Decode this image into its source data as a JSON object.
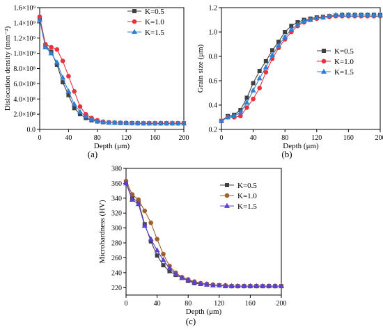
{
  "colors": {
    "k05": "#404040",
    "k10": "#e8323e",
    "k15": "#2f7fd4",
    "k10_c": "#a0602c",
    "k15_c": "#5b3fd6"
  },
  "chart_data": [
    {
      "id": "a",
      "type": "line",
      "panel_label": "(a)",
      "xlabel": "Depth (μm)",
      "ylabel": "Dislocation density (mm⁻²)",
      "xlim": [
        0,
        200
      ],
      "ylim": [
        0,
        1600000000.0
      ],
      "xticks": [
        0,
        40,
        80,
        120,
        160,
        200
      ],
      "xtick_labels": [
        "0",
        "40",
        "80",
        "120",
        "160",
        "200"
      ],
      "yticks": [
        0,
        200000000.0,
        400000000.0,
        600000000.0,
        800000000.0,
        1000000000.0,
        1200000000.0,
        1400000000.0,
        1600000000.0
      ],
      "ytick_labels": [
        "0.0",
        "2.0×10⁸",
        "4.0×10⁸",
        "6.0×10⁸",
        "8.0×10⁸",
        "1.0×10⁹",
        "1.2×10⁹",
        "1.4×10⁹",
        "1.6×10⁹"
      ],
      "legend": "top-right",
      "x": [
        0,
        8,
        16,
        24,
        32,
        40,
        48,
        56,
        64,
        72,
        80,
        88,
        96,
        104,
        112,
        120,
        128,
        136,
        144,
        152,
        160,
        168,
        176,
        184,
        192,
        200
      ],
      "series": [
        {
          "name": "K=0.5",
          "marker": "square",
          "values": [
            1450000000.0,
            1100000000.0,
            1020000000.0,
            850000000.0,
            620000000.0,
            450000000.0,
            280000000.0,
            200000000.0,
            150000000.0,
            120000000.0,
            105000000.0,
            95000000.0,
            90000000.0,
            87000000.0,
            85000000.0,
            83000000.0,
            82000000.0,
            81000000.0,
            80000000.0,
            80000000.0,
            80000000.0,
            80000000.0,
            80000000.0,
            80000000.0,
            80000000.0,
            80000000.0
          ]
        },
        {
          "name": "K=1.0",
          "marker": "circle",
          "values": [
            1480000000.0,
            1120000000.0,
            1080000000.0,
            1050000000.0,
            900000000.0,
            700000000.0,
            500000000.0,
            300000000.0,
            200000000.0,
            150000000.0,
            120000000.0,
            100000000.0,
            92000000.0,
            88000000.0,
            85000000.0,
            83000000.0,
            82000000.0,
            81000000.0,
            80000000.0,
            80000000.0,
            80000000.0,
            80000000.0,
            80000000.0,
            80000000.0,
            80000000.0,
            80000000.0
          ]
        },
        {
          "name": "K=1.5",
          "marker": "triangle",
          "values": [
            1440000000.0,
            1080000000.0,
            1000000000.0,
            880000000.0,
            680000000.0,
            500000000.0,
            330000000.0,
            230000000.0,
            170000000.0,
            130000000.0,
            110000000.0,
            97000000.0,
            90000000.0,
            87000000.0,
            85000000.0,
            83000000.0,
            82000000.0,
            81000000.0,
            80000000.0,
            80000000.0,
            80000000.0,
            80000000.0,
            80000000.0,
            80000000.0,
            80000000.0,
            80000000.0
          ]
        }
      ]
    },
    {
      "id": "b",
      "type": "line",
      "panel_label": "(b)",
      "xlabel": "Depth (μm)",
      "ylabel": "Grain size (μm)",
      "xlim": [
        0,
        200
      ],
      "ylim": [
        0.2,
        1.2
      ],
      "xticks": [
        0,
        40,
        80,
        120,
        160,
        200
      ],
      "xtick_labels": [
        "0",
        "40",
        "80",
        "120",
        "160",
        "200"
      ],
      "yticks": [
        0.2,
        0.4,
        0.6,
        0.8,
        1.0,
        1.2
      ],
      "ytick_labels": [
        "0.2",
        "0.4",
        "0.6",
        "0.8",
        "1.0",
        "1.2"
      ],
      "legend": "center-right",
      "x": [
        0,
        8,
        16,
        24,
        32,
        40,
        48,
        56,
        64,
        72,
        80,
        88,
        96,
        104,
        112,
        120,
        128,
        136,
        144,
        152,
        160,
        168,
        176,
        184,
        192,
        200
      ],
      "series": [
        {
          "name": "K=0.5",
          "marker": "square",
          "values": [
            0.27,
            0.31,
            0.32,
            0.36,
            0.46,
            0.58,
            0.68,
            0.76,
            0.85,
            0.92,
            1.0,
            1.05,
            1.08,
            1.1,
            1.11,
            1.12,
            1.125,
            1.13,
            1.135,
            1.14,
            1.14,
            1.14,
            1.14,
            1.14,
            1.14,
            1.14
          ]
        },
        {
          "name": "K=1.0",
          "marker": "circle",
          "values": [
            0.27,
            0.3,
            0.3,
            0.31,
            0.38,
            0.45,
            0.54,
            0.67,
            0.78,
            0.87,
            0.94,
            1.0,
            1.05,
            1.08,
            1.1,
            1.11,
            1.12,
            1.125,
            1.13,
            1.13,
            1.13,
            1.13,
            1.13,
            1.13,
            1.13,
            1.13
          ]
        },
        {
          "name": "K=1.5",
          "marker": "triangle",
          "values": [
            0.27,
            0.3,
            0.31,
            0.34,
            0.42,
            0.52,
            0.62,
            0.71,
            0.81,
            0.89,
            0.96,
            1.02,
            1.06,
            1.09,
            1.1,
            1.115,
            1.12,
            1.13,
            1.14,
            1.14,
            1.14,
            1.14,
            1.14,
            1.14,
            1.14,
            1.14
          ]
        }
      ]
    },
    {
      "id": "c",
      "type": "line",
      "panel_label": "(c)",
      "xlabel": "Depth (μm)",
      "ylabel": "Microhardness (HV)",
      "xlim": [
        0,
        200
      ],
      "ylim": [
        210,
        380
      ],
      "xticks": [
        0,
        40,
        80,
        120,
        160,
        200
      ],
      "xtick_labels": [
        "0",
        "40",
        "80",
        "120",
        "160",
        "200"
      ],
      "yticks": [
        220,
        240,
        260,
        280,
        300,
        320,
        340,
        360,
        380
      ],
      "ytick_labels": [
        "220",
        "240",
        "260",
        "280",
        "300",
        "320",
        "340",
        "360",
        "380"
      ],
      "legend": "top-right",
      "x": [
        0,
        8,
        16,
        24,
        32,
        40,
        48,
        56,
        64,
        72,
        80,
        88,
        96,
        104,
        112,
        120,
        128,
        136,
        144,
        152,
        160,
        168,
        176,
        184,
        192,
        200
      ],
      "series": [
        {
          "name": "K=0.5",
          "marker": "square",
          "values": [
            361,
            340,
            335,
            305,
            282,
            263,
            250,
            242,
            237,
            233,
            229,
            226,
            225,
            224,
            223,
            223,
            222,
            222,
            222,
            222,
            222,
            222,
            222,
            222,
            222,
            222
          ]
        },
        {
          "name": "K=1.0",
          "marker": "circle",
          "values": [
            363,
            345,
            338,
            323,
            307,
            285,
            265,
            249,
            240,
            234,
            231,
            228,
            226,
            225,
            224,
            223,
            223,
            222,
            222,
            222,
            222,
            222,
            222,
            222,
            222,
            222
          ]
        },
        {
          "name": "K=1.5",
          "marker": "triangle",
          "values": [
            360,
            338,
            332,
            303,
            285,
            270,
            257,
            246,
            238,
            233,
            230,
            227,
            225,
            224,
            223,
            223,
            222,
            222,
            222,
            222,
            222,
            222,
            222,
            222,
            222,
            222
          ]
        }
      ]
    }
  ]
}
